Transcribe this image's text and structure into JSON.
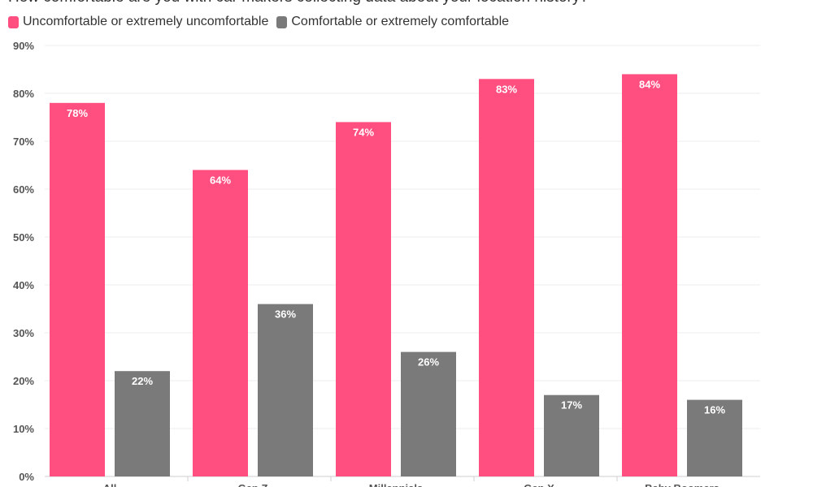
{
  "title": "How comfortable are you with car makers collecting data about your location history?",
  "legend": [
    {
      "label": "Uncomfortable or extremely uncomfortable",
      "color": "#ff4f81"
    },
    {
      "label": "Comfortable or extremely comfortable",
      "color": "#7a7a7a"
    }
  ],
  "chart_data": {
    "type": "bar",
    "categories": [
      "All",
      "Gen Z",
      "Millennials",
      "Gen X",
      "Baby Boomers"
    ],
    "series": [
      {
        "name": "Uncomfortable or extremely uncomfortable",
        "values": [
          78,
          64,
          74,
          83,
          84
        ],
        "color": "#ff4f81"
      },
      {
        "name": "Comfortable or extremely comfortable",
        "values": [
          22,
          36,
          26,
          17,
          16
        ],
        "color": "#7a7a7a"
      }
    ],
    "value_labels": [
      [
        "78%",
        "64%",
        "74%",
        "83%",
        "84%"
      ],
      [
        "22%",
        "36%",
        "26%",
        "17%",
        "16%"
      ]
    ],
    "yticks": [
      "0%",
      "10%",
      "20%",
      "30%",
      "40%",
      "50%",
      "60%",
      "70%",
      "80%",
      "90%"
    ],
    "ylim": [
      0,
      90
    ],
    "grid": true,
    "legend_position": "top-left"
  }
}
